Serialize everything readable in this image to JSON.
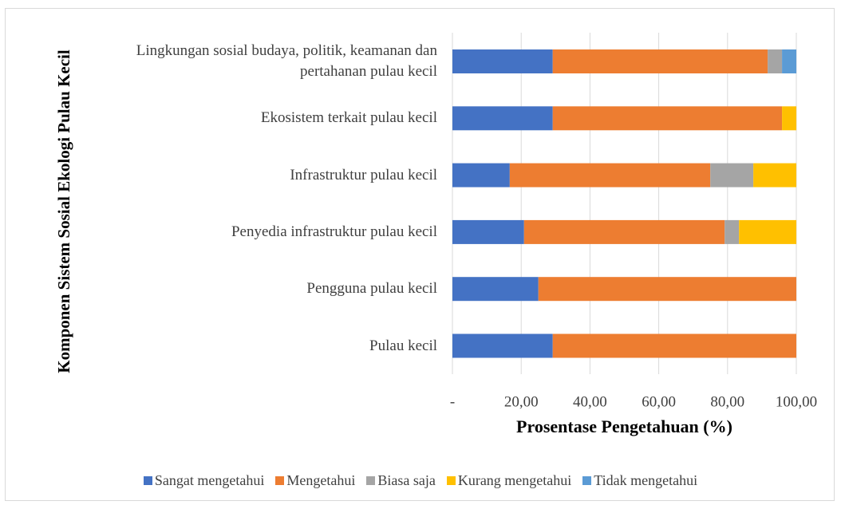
{
  "chart_data": {
    "type": "stacked_bar_horizontal",
    "xlabel": "Prosentase Pengetahuan (%)",
    "ylabel": "Komponen Sistem Sosial Ekologi Pulau Kecil",
    "categories": [
      "Lingkungan sosial budaya, politik, keamanan dan pertahanan pulau kecil",
      "Ekosistem terkait pulau kecil",
      "Infrastruktur pulau kecil",
      "Penyedia infrastruktur pulau kecil",
      "Pengguna pulau kecil",
      "Pulau kecil"
    ],
    "series": [
      {
        "name": "Sangat mengetahui",
        "color": "#4472c4",
        "values": [
          29.17,
          29.17,
          16.67,
          20.83,
          25,
          29.17
        ]
      },
      {
        "name": "Mengetahui",
        "color": "#ed7d31",
        "values": [
          62.5,
          66.67,
          58.33,
          58.33,
          75,
          70.83
        ]
      },
      {
        "name": "Biasa saja",
        "color": "#a5a5a5",
        "values": [
          4.17,
          0,
          12.5,
          4.17,
          0,
          0
        ]
      },
      {
        "name": "Kurang mengetahui",
        "color": "#ffc000",
        "values": [
          0,
          4.17,
          12.5,
          16.67,
          0,
          0
        ]
      },
      {
        "name": "Tidak mengetahui",
        "color": "#5b9bd5",
        "values": [
          4.17,
          0,
          0,
          0,
          0,
          0
        ]
      }
    ],
    "xlim": [
      0,
      100
    ],
    "xticks": [
      {
        "value": 0,
        "label": "-"
      },
      {
        "value": 20,
        "label": "20,00"
      },
      {
        "value": 40,
        "label": "40,00"
      },
      {
        "value": 60,
        "label": "60,00"
      },
      {
        "value": 80,
        "label": "80,00"
      },
      {
        "value": 100,
        "label": "100,00"
      }
    ],
    "grid": true,
    "legend": "bottom"
  }
}
